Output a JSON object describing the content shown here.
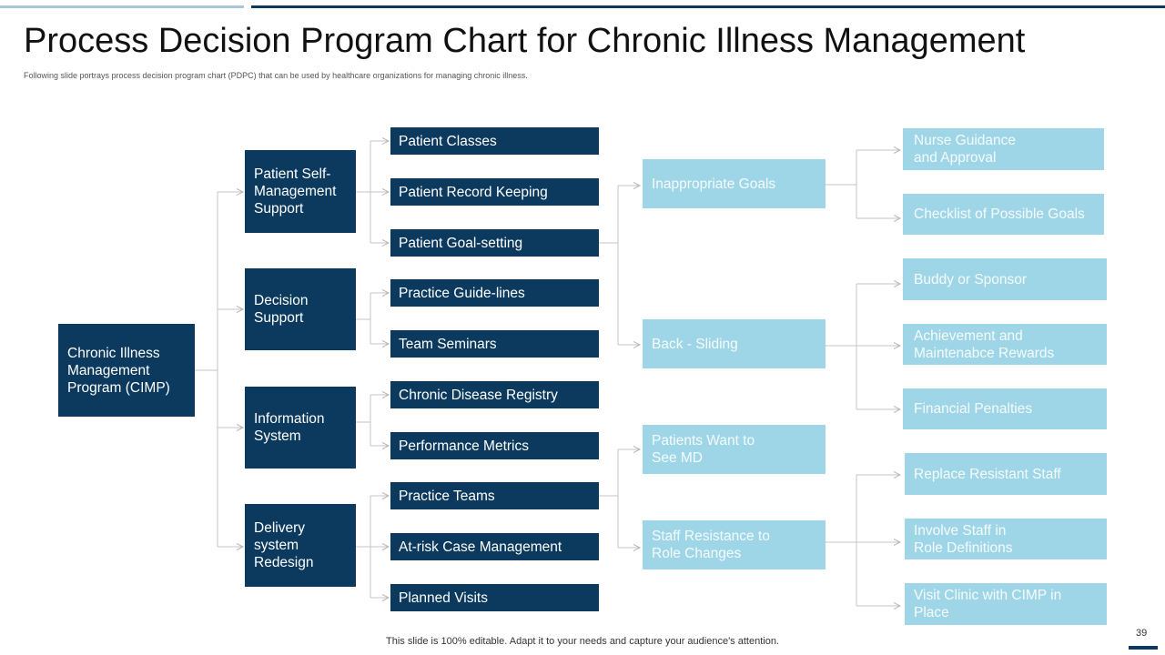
{
  "slide": {
    "title": "Process Decision Program Chart for Chronic Illness Management",
    "subtitle": "Following slide portrays process decision program chart (PDPC)  that can be used by healthcare organizations for managing  chronic illness.",
    "footer": "This slide is 100% editable. Adapt it to your needs and capture your audience's attention.",
    "page_number": "39"
  },
  "colors": {
    "dark": "#0b3a5e",
    "light": "#9ed6e8",
    "connector": "#bdbdbd"
  },
  "root": {
    "label": "Chronic Illness Management Program (CIMP)"
  },
  "categories": [
    {
      "label": "Patient Self-Management Support",
      "items": [
        "Patient Classes",
        "Patient Record Keeping",
        "Patient Goal-setting"
      ]
    },
    {
      "label": "Decision Support",
      "items": [
        "Practice Guide-lines",
        "Team Seminars"
      ]
    },
    {
      "label": "Information System",
      "items": [
        "Chronic Disease Registry",
        "Performance Metrics"
      ]
    },
    {
      "label": "Delivery system Redesign",
      "items": [
        "Practice Teams",
        "At-risk Case Management",
        "Planned Visits"
      ]
    }
  ],
  "risks": [
    {
      "label": "Inappropriate Goals",
      "countermeasures": [
        "Nurse Guidance and Approval",
        "Checklist of Possible Goals"
      ]
    },
    {
      "label": "Back - Sliding",
      "countermeasures": [
        "Buddy or Sponsor",
        "Achievement and Maintenabce Rewards",
        "Financial Penalties"
      ]
    },
    {
      "label": "Patients Want to See MD",
      "countermeasures": []
    },
    {
      "label": "Staff Resistance to Role Changes",
      "countermeasures": [
        "Replace Resistant Staff",
        "Involve  Staff in Role Definitions",
        "Visit Clinic with CIMP in Place"
      ]
    }
  ]
}
